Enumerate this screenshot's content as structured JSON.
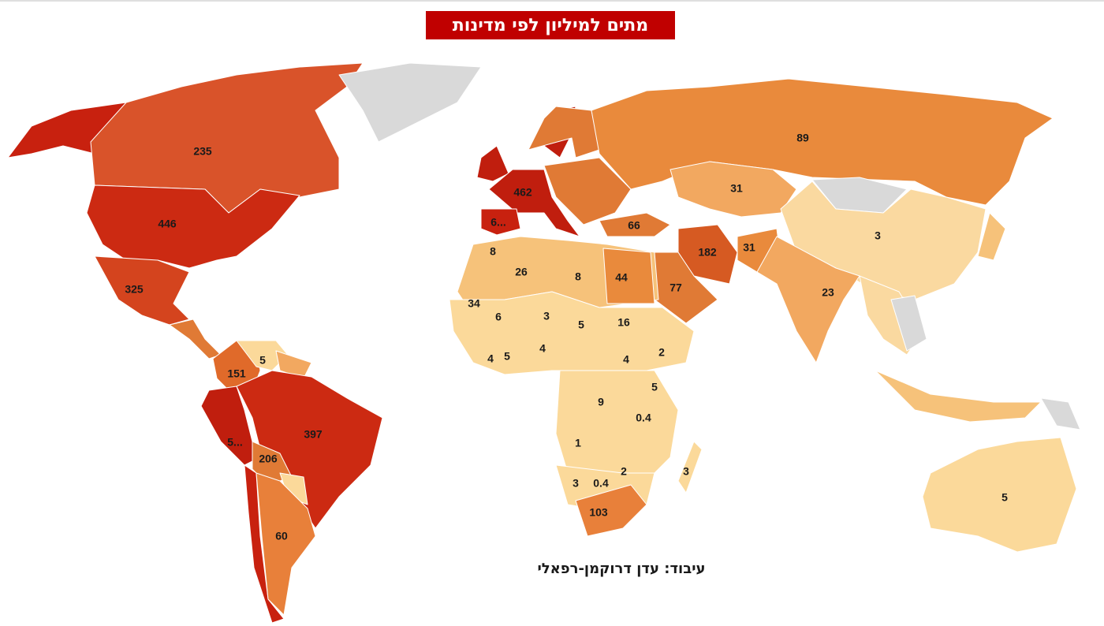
{
  "title": "מתים למיליון לפי מדינות",
  "credit": "עיבוד: עדן דרוקמן-רפאלי",
  "labels": [
    235,
    446,
    325,
    151,
    5,
    397,
    "5...",
    206,
    60,
    462,
    "6...",
    66,
    89,
    31,
    182,
    31,
    3,
    23,
    77,
    8,
    26,
    8,
    44,
    34,
    6,
    3,
    5,
    16,
    4,
    4,
    5,
    2,
    4,
    5,
    9,
    0.4,
    1,
    2,
    0.4,
    3,
    3,
    103,
    5
  ]
}
